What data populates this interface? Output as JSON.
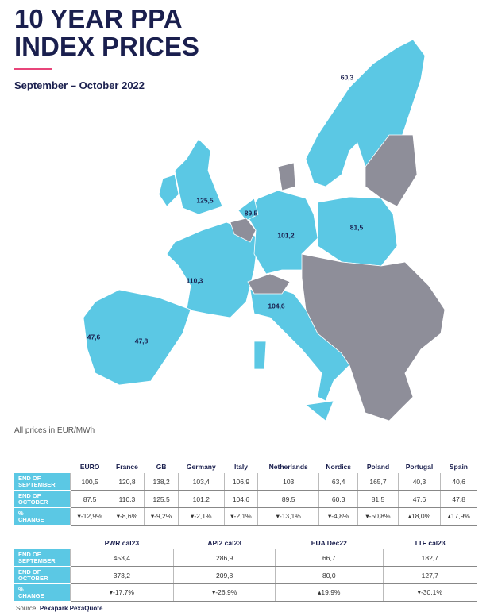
{
  "header": {
    "title_lines": [
      "10 YEAR PPA",
      "INDEX PRICES"
    ],
    "subtitle": "September – October 2022"
  },
  "map_labels": [
    "60,3",
    "125,5",
    "89,5",
    "101,2",
    "81,5",
    "110,3",
    "104,6",
    "47,6",
    "47,8"
  ],
  "note": "All prices in EUR/MWh",
  "table1": {
    "columns": [
      "EURO",
      "France",
      "GB",
      "Germany",
      "Italy",
      "Netherlands",
      "Nordics",
      "Poland",
      "Portugal",
      "Spain"
    ],
    "rows": [
      {
        "label": [
          "END OF",
          "SEPTEMBER"
        ],
        "cells": [
          "100,5",
          "120,8",
          "138,2",
          "103,4",
          "106,9",
          "103",
          "63,4",
          "165,7",
          "40,3",
          "40,6"
        ]
      },
      {
        "label": [
          "END OF",
          "OCTOBER"
        ],
        "cells": [
          "87,5",
          "110,3",
          "125,5",
          "101,2",
          "104,6",
          "89,5",
          "60,3",
          "81,5",
          "47,6",
          "47,8"
        ]
      },
      {
        "label": [
          "%",
          "CHANGE"
        ],
        "cells": [
          "▾-12,9%",
          "▾-8,6%",
          "▾-9,2%",
          "▾-2,1%",
          "▾-2,1%",
          "▾-13,1%",
          "▾-4,8%",
          "▾-50,8%",
          "▴18,0%",
          "▴17,9%"
        ]
      }
    ]
  },
  "table2": {
    "columns": [
      "PWR cal23",
      "API2 cal23",
      "EUA Dec22",
      "TTF cal23"
    ],
    "rows": [
      {
        "label": [
          "END OF",
          "SEPTEMBER"
        ],
        "cells": [
          "453,4",
          "286,9",
          "66,7",
          "182,7"
        ]
      },
      {
        "label": [
          "END OF",
          "OCTOBER"
        ],
        "cells": [
          "373,2",
          "209,8",
          "80,0",
          "127,7"
        ]
      },
      {
        "label": [
          "%",
          "CHANGE"
        ],
        "cells": [
          "▾-17,7%",
          "▾-26,9%",
          "▴19,9%",
          "▾-30,1%"
        ]
      }
    ]
  },
  "source": {
    "prefix": "Source:",
    "name": "Pexapark PexaQuote"
  }
}
